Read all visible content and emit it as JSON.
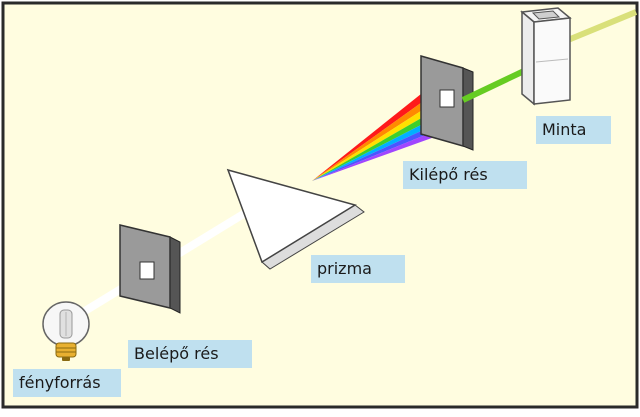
{
  "colors": {
    "background": "#fffde0",
    "frame_border": "#2a2a2a",
    "label_bg": "#bfe0ef",
    "beam_white": "#ffffff",
    "beam_green": "#66cc22",
    "beam_faint": "#d9e07a",
    "slit_face": "#9a9a9a",
    "slit_side": "#555555",
    "prism_top": "#ffffff",
    "prism_side": "#dddddd"
  },
  "spectrum_colors": [
    "#ff1a1a",
    "#ff8a00",
    "#ffe000",
    "#3fcf2a",
    "#00b0ff",
    "#4a55ff",
    "#a046ff"
  ],
  "labels": {
    "light_source": "fényforrás",
    "entrance_slit": "Belépő rés",
    "prism": "prizma",
    "exit_slit": "Kilépő rés",
    "sample": "Minta"
  }
}
